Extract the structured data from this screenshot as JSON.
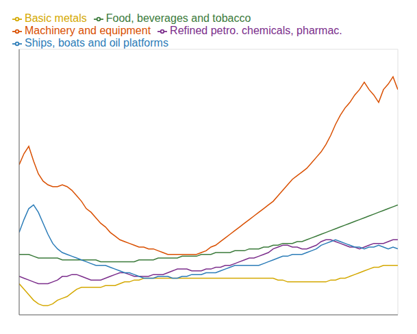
{
  "chart_data": {
    "type": "line",
    "x": [
      0,
      1,
      2,
      3,
      4,
      5,
      6,
      7,
      8,
      9,
      10,
      11,
      12,
      13,
      14,
      15,
      16,
      17,
      18,
      19,
      20,
      21,
      22,
      23,
      24,
      25,
      26,
      27,
      28,
      29,
      30,
      31,
      32,
      33,
      34,
      35,
      36,
      37,
      38,
      39,
      40,
      41,
      42,
      43,
      44,
      45,
      46,
      47,
      48,
      49,
      50,
      51,
      52,
      53,
      54,
      55,
      56,
      57,
      58,
      59,
      60,
      61,
      62,
      63,
      64,
      65,
      66,
      67,
      68,
      69,
      70,
      71,
      72,
      73,
      74,
      75,
      76,
      77,
      78,
      79
    ],
    "series": [
      {
        "name": "Food, beverages and tobacco",
        "color": "#3a7a3a",
        "values": [
          103,
          103,
          103,
          102,
          101,
          101,
          101,
          101,
          101,
          100,
          100,
          100,
          100,
          100,
          100,
          100,
          100,
          99,
          99,
          99,
          99,
          99,
          99,
          99,
          99,
          100,
          100,
          100,
          100,
          101,
          101,
          101,
          101,
          101,
          102,
          102,
          102,
          102,
          103,
          103,
          103,
          104,
          104,
          104,
          104,
          105,
          105,
          105,
          106,
          106,
          106,
          107,
          107,
          108,
          108,
          109,
          109,
          109,
          110,
          110,
          111,
          112,
          113,
          114,
          115,
          116,
          117,
          118,
          119,
          120,
          121,
          122,
          123,
          124,
          125,
          126,
          127,
          128,
          129,
          130
        ]
      },
      {
        "name": "Refined petro. chemicals, pharmac.",
        "color": "#7b2d8b",
        "values": [
          91,
          90,
          89,
          88,
          87,
          87,
          87,
          88,
          89,
          91,
          91,
          92,
          92,
          91,
          90,
          89,
          89,
          89,
          90,
          91,
          92,
          93,
          93,
          92,
          91,
          91,
          91,
          91,
          92,
          92,
          92,
          93,
          94,
          95,
          95,
          95,
          94,
          94,
          94,
          95,
          95,
          96,
          96,
          97,
          97,
          98,
          99,
          100,
          101,
          101,
          102,
          103,
          104,
          106,
          107,
          108,
          108,
          107,
          107,
          106,
          106,
          107,
          108,
          110,
          111,
          111,
          110,
          109,
          108,
          107,
          107,
          106,
          107,
          108,
          109,
          109,
          109,
          110,
          111,
          111
        ]
      },
      {
        "name": "Basic metals",
        "color": "#d4a800",
        "values": [
          87,
          84,
          81,
          78,
          76,
          75,
          75,
          76,
          78,
          79,
          80,
          82,
          84,
          85,
          85,
          85,
          85,
          85,
          86,
          86,
          86,
          87,
          88,
          88,
          89,
          89,
          90,
          90,
          90,
          90,
          90,
          90,
          90,
          90,
          90,
          90,
          90,
          90,
          90,
          90,
          90,
          90,
          90,
          90,
          90,
          90,
          90,
          90,
          90,
          90,
          90,
          90,
          90,
          90,
          89,
          89,
          88,
          88,
          88,
          88,
          88,
          88,
          88,
          88,
          88,
          89,
          89,
          90,
          90,
          91,
          92,
          93,
          94,
          95,
          96,
          96,
          97,
          97,
          97,
          97
        ]
      },
      {
        "name": "Ships, boats and oil platforms",
        "color": "#2b7cb8",
        "values": [
          115,
          122,
          128,
          130,
          126,
          120,
          114,
          109,
          106,
          104,
          103,
          102,
          101,
          100,
          99,
          98,
          97,
          97,
          97,
          96,
          95,
          94,
          93,
          93,
          92,
          91,
          90,
          90,
          90,
          91,
          91,
          91,
          90,
          90,
          91,
          91,
          92,
          92,
          92,
          93,
          93,
          93,
          94,
          95,
          96,
          97,
          97,
          97,
          97,
          97,
          97,
          98,
          99,
          100,
          101,
          102,
          102,
          103,
          103,
          103,
          104,
          105,
          106,
          108,
          109,
          110,
          111,
          110,
          109,
          108,
          107,
          107,
          106,
          107,
          107,
          108,
          107,
          106,
          107,
          106
        ]
      },
      {
        "name": "Machinery and equipment",
        "color": "#d94f00",
        "values": [
          152,
          158,
          162,
          154,
          147,
          143,
          141,
          140,
          140,
          141,
          140,
          138,
          135,
          132,
          128,
          126,
          123,
          120,
          118,
          115,
          113,
          111,
          110,
          109,
          108,
          107,
          107,
          106,
          106,
          105,
          104,
          103,
          103,
          103,
          103,
          103,
          103,
          103,
          104,
          105,
          107,
          108,
          110,
          112,
          114,
          116,
          118,
          120,
          122,
          124,
          126,
          128,
          130,
          132,
          135,
          138,
          141,
          144,
          146,
          148,
          150,
          153,
          156,
          159,
          163,
          168,
          174,
          179,
          183,
          186,
          190,
          193,
          197,
          193,
          190,
          186,
          193,
          196,
          200,
          193
        ]
      }
    ],
    "xlim": [
      0,
      79
    ],
    "xticks": [
      0,
      13,
      26,
      39,
      52,
      65,
      78
    ],
    "ylim": [
      70,
      215
    ],
    "yticks": [
      80,
      100,
      120,
      140,
      160,
      180,
      200
    ],
    "grid": true,
    "legend": "upper left",
    "tick_labels": false
  }
}
